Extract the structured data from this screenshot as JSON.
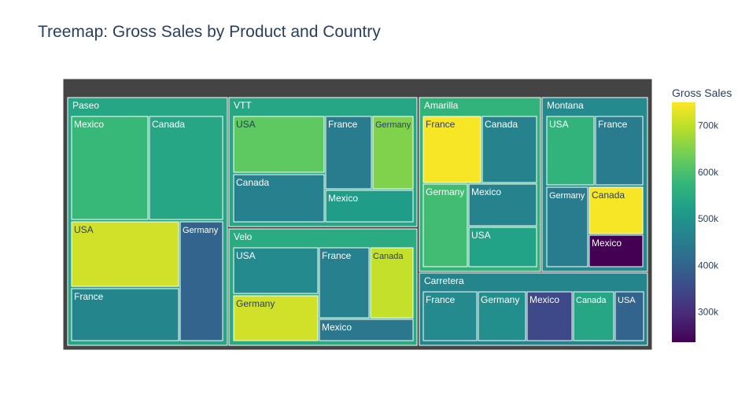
{
  "chart_data": {
    "type": "treemap",
    "title": "Treemap: Gross Sales by Product and Country",
    "colorbar": {
      "title": "Gross Sales",
      "ticks": [
        300000,
        400000,
        500000,
        600000,
        700000
      ],
      "tick_labels": [
        "300k",
        "400k",
        "500k",
        "600k",
        "700k"
      ],
      "range": [
        235000,
        750000
      ],
      "colorscale": "Viridis"
    },
    "root_value": 520000,
    "groups": [
      {
        "name": "Paseo",
        "value": 540000,
        "children": [
          {
            "name": "Mexico",
            "value": 580000
          },
          {
            "name": "Canada",
            "value": 540000
          },
          {
            "name": "USA",
            "value": 715000
          },
          {
            "name": "France",
            "value": 470000
          },
          {
            "name": "Germany",
            "value": 400000
          }
        ]
      },
      {
        "name": "VTT",
        "value": 540000,
        "children": [
          {
            "name": "USA",
            "value": 620000
          },
          {
            "name": "France",
            "value": 450000
          },
          {
            "name": "Germany",
            "value": 650000
          },
          {
            "name": "Canada",
            "value": 460000
          },
          {
            "name": "Mexico",
            "value": 520000
          }
        ]
      },
      {
        "name": "Velo",
        "value": 550000,
        "children": [
          {
            "name": "USA",
            "value": 480000
          },
          {
            "name": "France",
            "value": 460000
          },
          {
            "name": "Canada",
            "value": 705000
          },
          {
            "name": "Germany",
            "value": 715000
          },
          {
            "name": "Mexico",
            "value": 440000
          }
        ]
      },
      {
        "name": "Amarilla",
        "value": 570000,
        "children": [
          {
            "name": "France",
            "value": 745000
          },
          {
            "name": "Canada",
            "value": 465000
          },
          {
            "name": "Germany",
            "value": 590000
          },
          {
            "name": "Mexico",
            "value": 465000
          },
          {
            "name": "USA",
            "value": 530000
          }
        ]
      },
      {
        "name": "Montana",
        "value": 480000,
        "children": [
          {
            "name": "USA",
            "value": 570000
          },
          {
            "name": "France",
            "value": 450000
          },
          {
            "name": "Germany",
            "value": 450000
          },
          {
            "name": "Canada",
            "value": 745000
          },
          {
            "name": "Mexico",
            "value": 235000
          }
        ]
      },
      {
        "name": "Carretera",
        "value": 470000,
        "children": [
          {
            "name": "France",
            "value": 480000
          },
          {
            "name": "Germany",
            "value": 490000
          },
          {
            "name": "Mexico",
            "value": 350000
          },
          {
            "name": "Canada",
            "value": 540000
          },
          {
            "name": "USA",
            "value": 400000
          }
        ]
      }
    ]
  }
}
